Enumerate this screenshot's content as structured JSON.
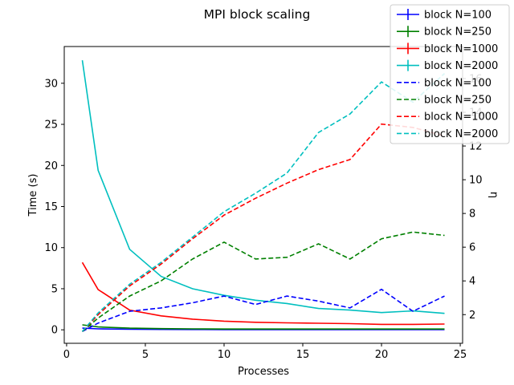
{
  "chart_data": {
    "type": "line",
    "title": "MPI block scaling",
    "xlabel": "Processes",
    "ylabel": "Time (s)",
    "y2label": "η",
    "xlim": [
      -0.15,
      25.15
    ],
    "ylim": [
      -1.64,
      34.47
    ],
    "y2lim": [
      0.3,
      17.9
    ],
    "xticks": [
      0,
      5,
      10,
      15,
      20,
      25
    ],
    "yticks": [
      0,
      5,
      10,
      15,
      20,
      25,
      30
    ],
    "y2ticks": [
      2,
      4,
      6,
      8,
      10,
      12,
      14,
      16
    ],
    "grid": false,
    "legend_position": "top-right",
    "x": [
      1,
      2,
      4,
      6,
      8,
      10,
      12,
      14,
      16,
      18,
      20,
      22,
      24
    ],
    "time_series": [
      {
        "name": "block N=100",
        "color": "#0000ff",
        "values": [
          0.2,
          0.12,
          0.07,
          0.05,
          0.04,
          0.03,
          0.03,
          0.03,
          0.03,
          0.03,
          0.03,
          0.03,
          0.03
        ]
      },
      {
        "name": "block N=250",
        "color": "#008000",
        "values": [
          0.6,
          0.35,
          0.2,
          0.15,
          0.12,
          0.1,
          0.1,
          0.1,
          0.1,
          0.1,
          0.1,
          0.1,
          0.1
        ]
      },
      {
        "name": "block N=1000",
        "color": "#ff0000",
        "values": [
          8.2,
          4.9,
          2.4,
          1.7,
          1.3,
          1.05,
          0.92,
          0.85,
          0.8,
          0.75,
          0.66,
          0.66,
          0.7
        ]
      },
      {
        "name": "block N=2000",
        "color": "#00bfbf",
        "values": [
          32.8,
          19.4,
          9.8,
          6.5,
          5.0,
          4.2,
          3.6,
          3.2,
          2.6,
          2.4,
          2.1,
          2.3,
          2.0
        ]
      }
    ],
    "efficiency_series": [
      {
        "name": "block N=100",
        "color": "#0000ff",
        "values": [
          1.0,
          1.5,
          2.2,
          2.4,
          2.7,
          3.1,
          2.6,
          3.1,
          2.8,
          2.4,
          3.5,
          2.2,
          3.1
        ]
      },
      {
        "name": "block N=250",
        "color": "#008000",
        "values": [
          1.0,
          1.8,
          3.1,
          4.0,
          5.3,
          6.3,
          5.3,
          5.4,
          6.2,
          5.3,
          6.5,
          6.9,
          6.7
        ]
      },
      {
        "name": "block N=1000",
        "color": "#ff0000",
        "values": [
          1.0,
          2.0,
          3.7,
          5.0,
          6.5,
          7.9,
          8.9,
          9.8,
          10.6,
          11.2,
          13.3,
          13.1,
          12.6
        ]
      },
      {
        "name": "block N=2000",
        "color": "#00bfbf",
        "values": [
          1.0,
          2.1,
          3.8,
          5.1,
          6.6,
          8.1,
          9.2,
          10.4,
          12.8,
          13.9,
          15.8,
          14.6,
          16.3
        ]
      }
    ],
    "legend": [
      "block N=100",
      "block N=250",
      "block N=1000",
      "block N=2000",
      "block N=100",
      "block N=250",
      "block N=1000",
      "block N=2000"
    ]
  }
}
